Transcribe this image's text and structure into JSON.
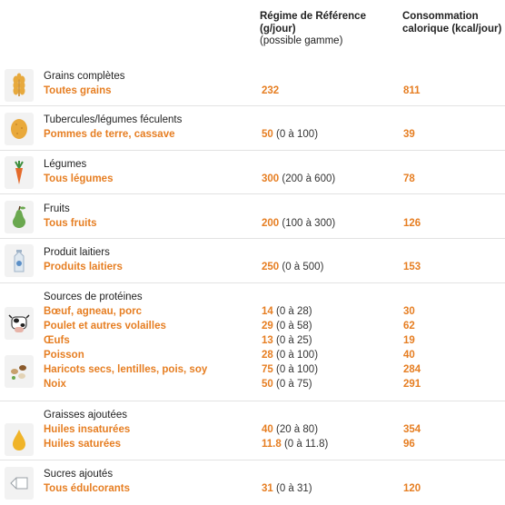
{
  "header": {
    "col_regime_title": "Régime de Référence (g/jour)",
    "col_regime_sub": "(possible gamme)",
    "col_cons_title": "Consommation calorique (kcal/jour)"
  },
  "groups": [
    {
      "category": "Grains complètes",
      "icon": "wheat-icon",
      "items": [
        {
          "name": "Toutes grains",
          "value": "232",
          "range": "",
          "kcal": "811"
        }
      ]
    },
    {
      "category": "Tubercules/légumes féculents",
      "icon": "potato-icon",
      "items": [
        {
          "name": "Pommes de terre, cassave",
          "value": "50",
          "range": "(0 à 100)",
          "kcal": "39"
        }
      ]
    },
    {
      "category": "Légumes",
      "icon": "carrot-icon",
      "items": [
        {
          "name": "Tous légumes",
          "value": "300",
          "range": "(200 à 600)",
          "kcal": "78"
        }
      ]
    },
    {
      "category": "Fruits",
      "icon": "pear-icon",
      "items": [
        {
          "name": "Tous fruits",
          "value": "200",
          "range": "(100 à 300)",
          "kcal": "126"
        }
      ]
    },
    {
      "category": "Produit laitiers",
      "icon": "milk-carton-icon",
      "items": [
        {
          "name": "Produits laitiers",
          "value": "250",
          "range": "(0 à 500)",
          "kcal": "153"
        }
      ]
    },
    {
      "category": "Sources de protéines",
      "icon": "cow-icon",
      "icon2": "beans-icon",
      "items": [
        {
          "name": "Bœuf, agneau, porc",
          "value": "14",
          "range": "(0 à 28)",
          "kcal": "30"
        },
        {
          "name": "Poulet et autres volailles",
          "value": "29",
          "range": "(0 à 58)",
          "kcal": "62"
        },
        {
          "name": "Œufs",
          "value": "13",
          "range": "(0 à 25)",
          "kcal": "19"
        },
        {
          "name": "Poisson",
          "value": "28",
          "range": "(0 à 100)",
          "kcal": "40"
        },
        {
          "name": "Haricots secs, lentilles, pois, soy",
          "value": "75",
          "range": "(0 à 100)",
          "kcal": "284"
        },
        {
          "name": "Noix",
          "value": "50",
          "range": "(0 à 75)",
          "kcal": "291"
        }
      ]
    },
    {
      "category": "Graisses ajoutées",
      "icon": "oil-drop-icon",
      "items": [
        {
          "name": "Huiles insaturées",
          "value": "40",
          "range": "(20 à 80)",
          "kcal": "354"
        },
        {
          "name": "Huiles saturées",
          "value": "11.8",
          "range": "(0 à 11.8)",
          "kcal": "96"
        }
      ]
    },
    {
      "category": "Sucres ajoutés",
      "icon": "sugar-cube-icon",
      "items": [
        {
          "name": "Tous édulcorants",
          "value": "31",
          "range": "(0 à 31)",
          "kcal": "120"
        }
      ]
    }
  ],
  "colors": {
    "accent": "#e67e22",
    "icon_bg": "#f2f2f2",
    "separator": "#e2e2e2"
  }
}
